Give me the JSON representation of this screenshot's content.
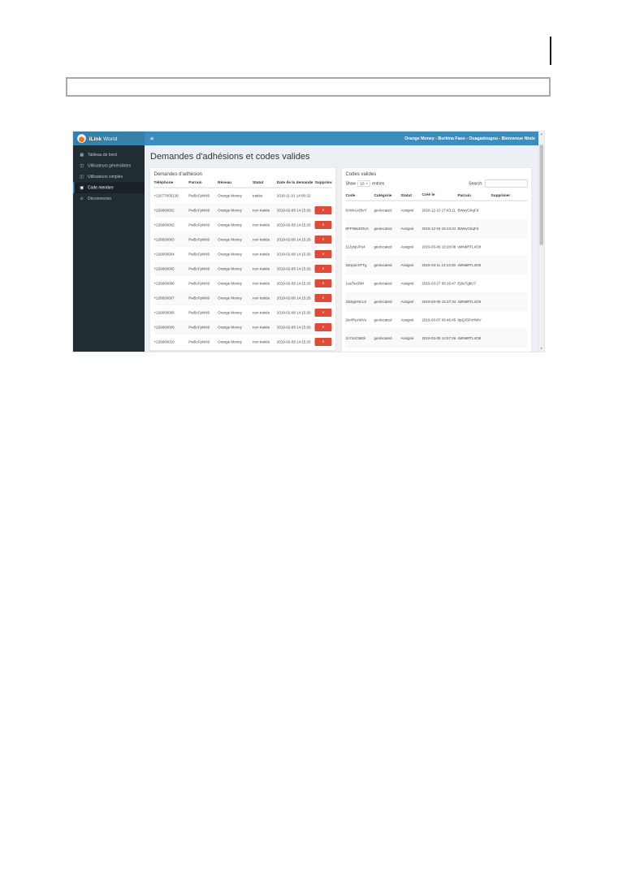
{
  "icons": {
    "menu": "≡",
    "caret": "▾",
    "sort": "↕",
    "arrow_up": "▲",
    "arrow_down": "▼",
    "delete": "×"
  },
  "colors": {
    "header_blue": "#3c8dbc",
    "logo_blue": "#367fa9",
    "sidebar_dark": "#222d32",
    "danger_red": "#dd4b39",
    "content_bg": "#ecf0f5"
  },
  "app": {
    "header": {
      "brand_bold": "iLink",
      "brand_light": "World",
      "user_info": "Orange Money - Burkina Faso - Ouagadougou - Bienvenue Ntolo"
    },
    "sidebar": {
      "items": [
        {
          "id": "tableau-de-bord",
          "icon": "dashboard-icon",
          "glyph": "▦",
          "label": "Tableau de bord",
          "active": false
        },
        {
          "id": "utilisateurs-generalistes",
          "icon": "users-icon",
          "glyph": "◫",
          "label": "Utilisateurs généralistes",
          "active": false
        },
        {
          "id": "utilisateurs-simples",
          "icon": "users-icon",
          "glyph": "◫",
          "label": "Utilisateurs simples",
          "active": false
        },
        {
          "id": "code-membre",
          "icon": "cube-icon",
          "glyph": "▣",
          "label": "Code membre",
          "active": true
        },
        {
          "id": "deconnexion",
          "icon": "power-icon",
          "glyph": "⊙",
          "label": "Déconnexion",
          "active": false
        }
      ]
    },
    "main": {
      "title": "Demandes d'adhésions et codes valides",
      "left_panel": {
        "title": "Demandes d'adhésion",
        "columns": [
          "Téléphone",
          "Parrain",
          "Réseau",
          "Statut",
          "Date de la demande",
          "Supprimer"
        ],
        "rows": [
          {
            "telephone": "+22677005139",
            "parrain": "PwBcFpNN9",
            "reseau": "Orange Money",
            "statut": "traitée",
            "date": "2018-11-01 14:00:32",
            "supprimer": false
          },
          {
            "telephone": "+226800002",
            "parrain": "PwBcFpNN9",
            "reseau": "Orange Money",
            "statut": "non traitée",
            "date": "2019-02-08 14:15:26",
            "supprimer": true
          },
          {
            "telephone": "+226800002",
            "parrain": "PwBcFpNN9",
            "reseau": "Orange Money",
            "statut": "non traitée",
            "date": "2019-02-08 14:15:26",
            "supprimer": true
          },
          {
            "telephone": "+226800003",
            "parrain": "PwBcFpNN9",
            "reseau": "Orange Money",
            "statut": "non traitée",
            "date": "2019-02-08 14:15:26",
            "supprimer": true
          },
          {
            "telephone": "+226800004",
            "parrain": "PwBcFpNN9",
            "reseau": "Orange Money",
            "statut": "non traitée",
            "date": "2019-02-08 14:15:26",
            "supprimer": true
          },
          {
            "telephone": "+226800005",
            "parrain": "PwBcFpNN9",
            "reseau": "Orange Money",
            "statut": "non traitée",
            "date": "2019-02-08 14:15:26",
            "supprimer": true
          },
          {
            "telephone": "+226800006",
            "parrain": "PwBcFpNN9",
            "reseau": "Orange Money",
            "statut": "non traitée",
            "date": "2019-02-08 14:15:26",
            "supprimer": true
          },
          {
            "telephone": "+226800007",
            "parrain": "PwBcFpNN9",
            "reseau": "Orange Money",
            "statut": "non traitée",
            "date": "2019-02-08 14:15:26",
            "supprimer": true
          },
          {
            "telephone": "+226800008",
            "parrain": "PwBcFpNN9",
            "reseau": "Orange Money",
            "statut": "non traitée",
            "date": "2019-02-08 14:15:26",
            "supprimer": true
          },
          {
            "telephone": "+226800009",
            "parrain": "PwBcFpNN9",
            "reseau": "Orange Money",
            "statut": "non traitée",
            "date": "2019-02-08 14:15:26",
            "supprimer": true
          },
          {
            "telephone": "+226800010",
            "parrain": "PwBcFpNN9",
            "reseau": "Orange Money",
            "statut": "non traitée",
            "date": "2019-02-08 14:15:26",
            "supprimer": true
          }
        ]
      },
      "right_panel": {
        "title": "Codes valides",
        "show_label": "Show",
        "page_size": "10",
        "entries_label": "entries",
        "search_label": "Search:",
        "search_value": "",
        "columns": [
          "Code",
          "Catégorie",
          "Statut",
          "Créé le",
          "Parrain",
          "Supprimer"
        ],
        "rows": [
          {
            "code": "6AWAUJBvY",
            "categorie": "geolocated",
            "statut": "Assigné",
            "cree_le": "2018-12-10 17:43:11",
            "parrain": "BWeyGhqFd"
          },
          {
            "code": "8FFhBuDOUs",
            "categorie": "geolocated",
            "statut": "Assigné",
            "cree_le": "2018-12-04 16:13:24",
            "parrain": "BWeyGhqFd"
          },
          {
            "code": "11JytqUPu4",
            "categorie": "geolocated",
            "statut": "Assigné",
            "cree_le": "2019-03-06 10:28:08",
            "parrain": "sMN6RTL4O8"
          },
          {
            "code": "1B1pscXFTg",
            "categorie": "geolocated",
            "statut": "Assigné",
            "cree_le": "2019-03-11 14:13:30",
            "parrain": "sMN6RTL4O8"
          },
          {
            "code": "1uaTso3Wr",
            "categorie": "geolocated",
            "statut": "Assigné",
            "cree_le": "2019-03-27 08:16:47",
            "parrain": "Ej8uTgbU7"
          },
          {
            "code": "1B2pjeNCu3",
            "categorie": "geolocated",
            "statut": "Assigné",
            "cree_le": "2019-03-06 15:37:34",
            "parrain": "sMN6RTL4O8"
          },
          {
            "code": "2iv4RyzWVu",
            "categorie": "geolocated",
            "statut": "Assigné",
            "cree_le": "2019-03-07 08:46:45",
            "parrain": "8pQJ5PzHWV"
          },
          {
            "code": "2c7sUO5iEk",
            "categorie": "geolocated",
            "statut": "Assigné",
            "cree_le": "2019-03-05 14:57:46",
            "parrain": "sMN6RTL4O8"
          },
          {
            "code": "1CN8MbXKp",
            "categorie": "geolocated",
            "statut": "Assigné",
            "cree_le": "2019-03-12",
            "parrain": "8pQJ5PzHWV"
          }
        ]
      }
    }
  }
}
